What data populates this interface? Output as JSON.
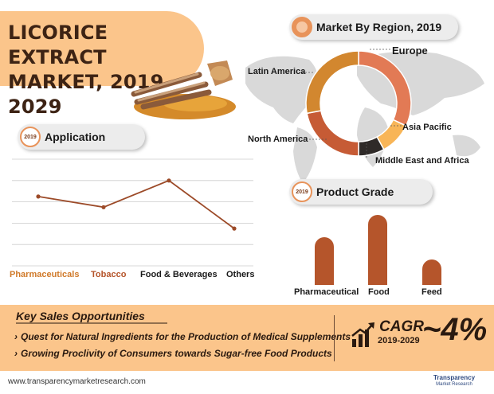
{
  "title": "LICORICE EXTRACT MARKET, 2019–2029",
  "region_section": {
    "header": "Market By Region, 2019"
  },
  "application_section": {
    "badge": "2019",
    "header": "Application"
  },
  "grade_section": {
    "badge": "2019",
    "header": "Product Grade"
  },
  "opportunities": {
    "title": "Key Sales Opportunities",
    "items": [
      "Quest for Natural Ingredients for the Production of Medical Supplements",
      "Growing Proclivity of Consumers towards Sugar-free Food Products"
    ]
  },
  "cagr": {
    "label": "CAGR",
    "years": "2019-2029",
    "value": "~4%"
  },
  "footer": {
    "url": "www.transparencymarketresearch.com",
    "logo_line1": "Transparency",
    "logo_line2": "Market Research"
  },
  "colors": {
    "accent": "#fbc58b",
    "orange": "#e8935a",
    "brown": "#b5552b",
    "dark": "#3d2314"
  },
  "chart_data": [
    {
      "type": "pie",
      "name": "region",
      "categories": [
        "Europe",
        "Asia Pacific",
        "Middle East and Africa",
        "North America",
        "Latin America"
      ],
      "values": [
        32,
        10,
        8,
        22,
        28
      ],
      "colors": [
        "#e27a55",
        "#f8b557",
        "#2f2a28",
        "#c65b35",
        "#d2872f"
      ]
    },
    {
      "type": "line",
      "name": "application",
      "categories": [
        "Pharmaceuticals",
        "Tobacco",
        "Food & Beverages",
        "Others"
      ],
      "values": [
        65,
        55,
        80,
        35
      ],
      "ylim": [
        0,
        100
      ],
      "category_colors": [
        "#d07a2a",
        "#b5552b",
        "#1a1a1a",
        "#1a1a1a"
      ]
    },
    {
      "type": "bar",
      "name": "product_grade",
      "categories": [
        "Pharmaceutical",
        "Food",
        "Feed"
      ],
      "values": [
        60,
        88,
        32
      ],
      "ylim": [
        0,
        100
      ]
    }
  ]
}
